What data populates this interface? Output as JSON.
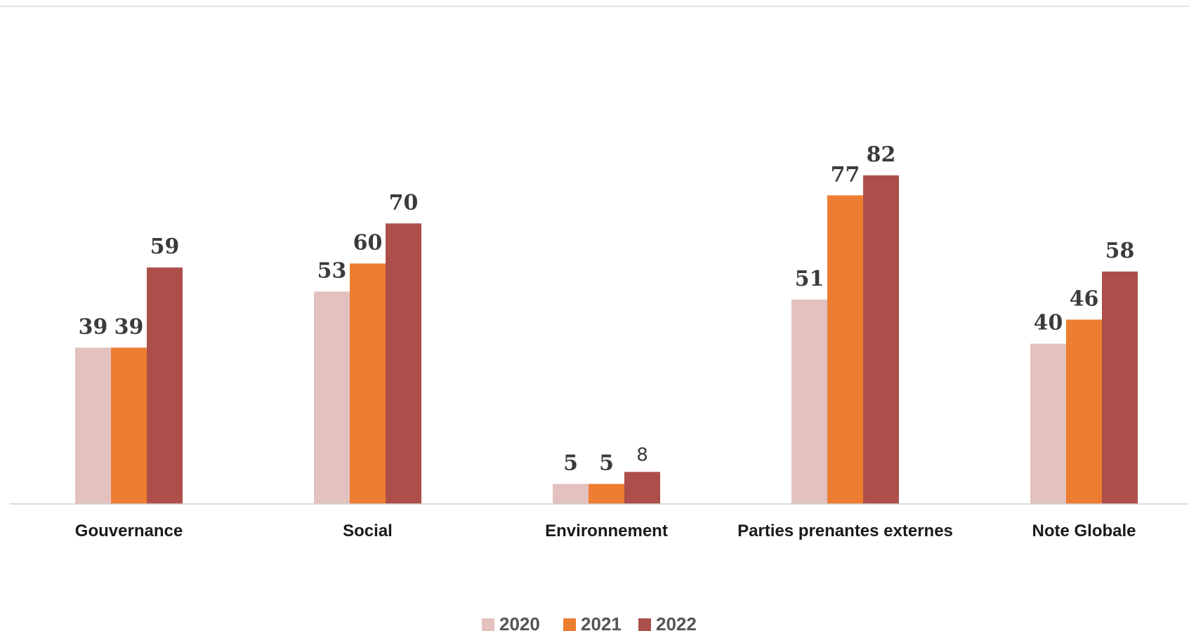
{
  "chart_data": {
    "type": "bar",
    "categories": [
      "Gouvernance",
      "Social",
      "Environnement",
      "Parties prenantes externes",
      "Note Globale"
    ],
    "series": [
      {
        "name": "2020",
        "values": [
          39,
          53,
          5,
          51,
          40
        ],
        "color": "#e3c1bf"
      },
      {
        "name": "2021",
        "values": [
          39,
          60,
          5,
          77,
          46
        ],
        "color": "#ed7d31"
      },
      {
        "name": "2022",
        "values": [
          59,
          70,
          8,
          82,
          58
        ],
        "color": "#ac4f4a"
      }
    ],
    "title": "",
    "xlabel": "",
    "ylabel": "",
    "ylim": [
      0,
      100
    ],
    "grid": false,
    "legend_position": "bottom-center",
    "data_labels": true
  }
}
